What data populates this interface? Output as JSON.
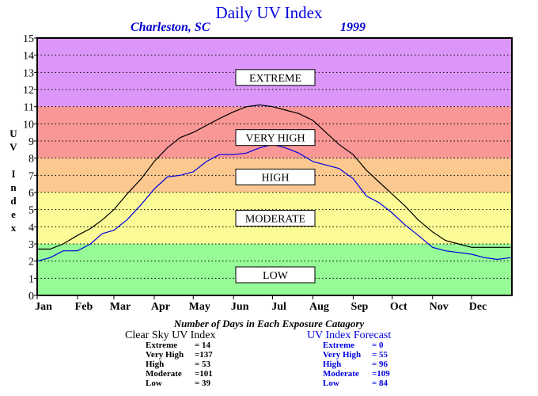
{
  "title": "Daily UV Index",
  "subtitle_location": "Charleston, SC",
  "subtitle_year": "1999",
  "y_axis_label": [
    "U",
    "V",
    "",
    "I",
    "n",
    "d",
    "e",
    "x"
  ],
  "chart_data": {
    "type": "line",
    "title": "Daily UV Index",
    "ylabel": "UV Index",
    "ylim": [
      0,
      15
    ],
    "xlim": [
      0,
      365
    ],
    "y_ticks": [
      "0",
      "1",
      "2",
      "3",
      "4",
      "5",
      "6",
      "7",
      "8",
      "9",
      "10",
      "11",
      "12",
      "13",
      "14",
      "15"
    ],
    "months": [
      "Jan",
      "Feb",
      "Mar",
      "Apr",
      "May",
      "Jun",
      "Jul",
      "Aug",
      "Sep",
      "Oct",
      "Nov",
      "Dec"
    ],
    "grid": true,
    "bands": [
      {
        "label": "LOW",
        "from": 0,
        "to": 3,
        "color": "#96fa96"
      },
      {
        "label": "MODERATE",
        "from": 3,
        "to": 6,
        "color": "#fafa96"
      },
      {
        "label": "HIGH",
        "from": 6,
        "to": 8,
        "color": "#fbc890"
      },
      {
        "label": "VERY HIGH",
        "from": 8,
        "to": 11,
        "color": "#f99696"
      },
      {
        "label": "EXTREME",
        "from": 11,
        "to": 15,
        "color": "#dc96fa"
      }
    ],
    "band_label_values": [
      1.2,
      4.5,
      6.9,
      9.2,
      12.7
    ],
    "series": [
      {
        "name": "Clear Sky UV Index",
        "color": "#000000",
        "x": [
          0,
          10,
          20,
          31,
          41,
          50,
          59,
          69,
          80,
          90,
          100,
          110,
          120,
          130,
          140,
          151,
          161,
          171,
          181,
          191,
          201,
          212,
          222,
          232,
          243,
          253,
          263,
          273,
          283,
          293,
          304,
          314,
          324,
          334,
          344,
          354,
          364
        ],
        "values": [
          2.7,
          2.7,
          3.0,
          3.5,
          3.9,
          4.4,
          5.0,
          5.9,
          6.8,
          7.8,
          8.6,
          9.2,
          9.5,
          9.9,
          10.3,
          10.7,
          11.0,
          11.1,
          11.0,
          10.8,
          10.6,
          10.2,
          9.5,
          8.8,
          8.2,
          7.3,
          6.6,
          5.9,
          5.2,
          4.4,
          3.7,
          3.2,
          3.0,
          2.8,
          2.8,
          2.8,
          2.8
        ]
      },
      {
        "name": "UV Index Forecast",
        "color": "#0000e0",
        "x": [
          0,
          10,
          20,
          31,
          41,
          50,
          59,
          69,
          80,
          90,
          100,
          110,
          120,
          130,
          140,
          151,
          161,
          171,
          181,
          191,
          201,
          212,
          222,
          232,
          243,
          253,
          263,
          273,
          283,
          293,
          304,
          314,
          324,
          334,
          344,
          354,
          364
        ],
        "values": [
          2.0,
          2.2,
          2.6,
          2.6,
          3.0,
          3.6,
          3.8,
          4.4,
          5.3,
          6.2,
          6.9,
          7.0,
          7.2,
          7.8,
          8.2,
          8.2,
          8.3,
          8.6,
          8.8,
          8.6,
          8.3,
          7.8,
          7.6,
          7.4,
          6.8,
          5.8,
          5.4,
          4.8,
          4.1,
          3.5,
          2.8,
          2.6,
          2.5,
          2.4,
          2.2,
          2.1,
          2.2
        ]
      }
    ]
  },
  "summary": {
    "caption": "Number of Days in Each Exposure Catagory",
    "clear_sky": {
      "heading": "Clear Sky UV Index",
      "rows": [
        {
          "label": "Extreme",
          "value": "= 14"
        },
        {
          "label": "Very High",
          "value": "=137"
        },
        {
          "label": "High",
          "value": "= 53"
        },
        {
          "label": "Moderate",
          "value": "=101"
        },
        {
          "label": "Low",
          "value": "= 39"
        }
      ]
    },
    "forecast": {
      "heading": "UV Index Forecast",
      "rows": [
        {
          "label": "Extreme",
          "value": "= 0"
        },
        {
          "label": "Very High",
          "value": "= 55"
        },
        {
          "label": "High",
          "value": "= 96"
        },
        {
          "label": "Moderate",
          "value": "=109"
        },
        {
          "label": "Low",
          "value": "= 84"
        }
      ]
    }
  },
  "colors": {
    "title": "#0000e0",
    "forecast": "#0000e0",
    "clear_sky": "#000000"
  }
}
